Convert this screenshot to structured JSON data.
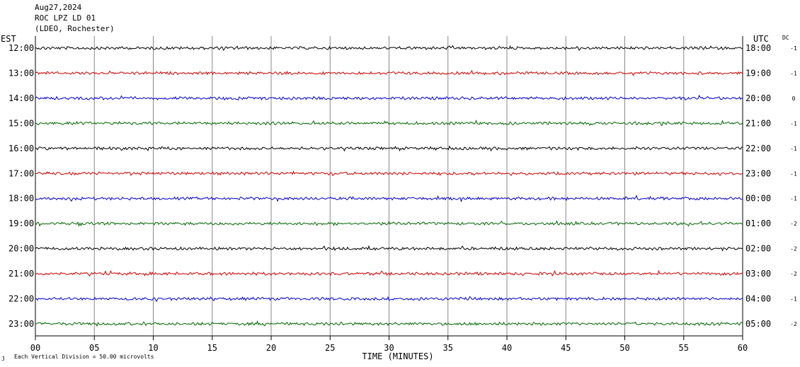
{
  "header": {
    "date": "Aug27,2024",
    "station": "ROC LPZ LD 01",
    "network": "(LDEO, Rochester)"
  },
  "left_axis_title": "EST",
  "right_axis_title": "UTC",
  "dc_title": "DC",
  "footer": {
    "scale_note": "Each Vertical Division =   50.00 microvolts",
    "mark": "J"
  },
  "chart_data": {
    "type": "line",
    "xlabel": "TIME (MINUTES)",
    "x_ticks": [
      "00",
      "05",
      "10",
      "15",
      "20",
      "25",
      "30",
      "35",
      "40",
      "45",
      "50",
      "55",
      "60"
    ],
    "xlim": [
      0,
      60
    ],
    "rows": [
      {
        "est": "12:00",
        "utc": "18:00",
        "dc": "-1",
        "color": "#000000"
      },
      {
        "est": "13:00",
        "utc": "19:00",
        "dc": "-1",
        "color": "#cc0000"
      },
      {
        "est": "14:00",
        "utc": "20:00",
        "dc": "0",
        "color": "#0000cc"
      },
      {
        "est": "15:00",
        "utc": "21:00",
        "dc": "-1",
        "color": "#006600"
      },
      {
        "est": "16:00",
        "utc": "22:00",
        "dc": "-1",
        "color": "#000000"
      },
      {
        "est": "17:00",
        "utc": "23:00",
        "dc": "-1",
        "color": "#cc0000"
      },
      {
        "est": "18:00",
        "utc": "00:00",
        "dc": "-1",
        "color": "#0000cc"
      },
      {
        "est": "19:00",
        "utc": "01:00",
        "dc": "-2",
        "color": "#006600"
      },
      {
        "est": "20:00",
        "utc": "02:00",
        "dc": "-2",
        "color": "#000000"
      },
      {
        "est": "21:00",
        "utc": "03:00",
        "dc": "-2",
        "color": "#cc0000"
      },
      {
        "est": "22:00",
        "utc": "04:00",
        "dc": "-1",
        "color": "#0000cc"
      },
      {
        "est": "23:00",
        "utc": "05:00",
        "dc": "-2",
        "color": "#006600"
      }
    ],
    "grid": true,
    "frame_color": "#000000",
    "grid_color": "#888888"
  }
}
